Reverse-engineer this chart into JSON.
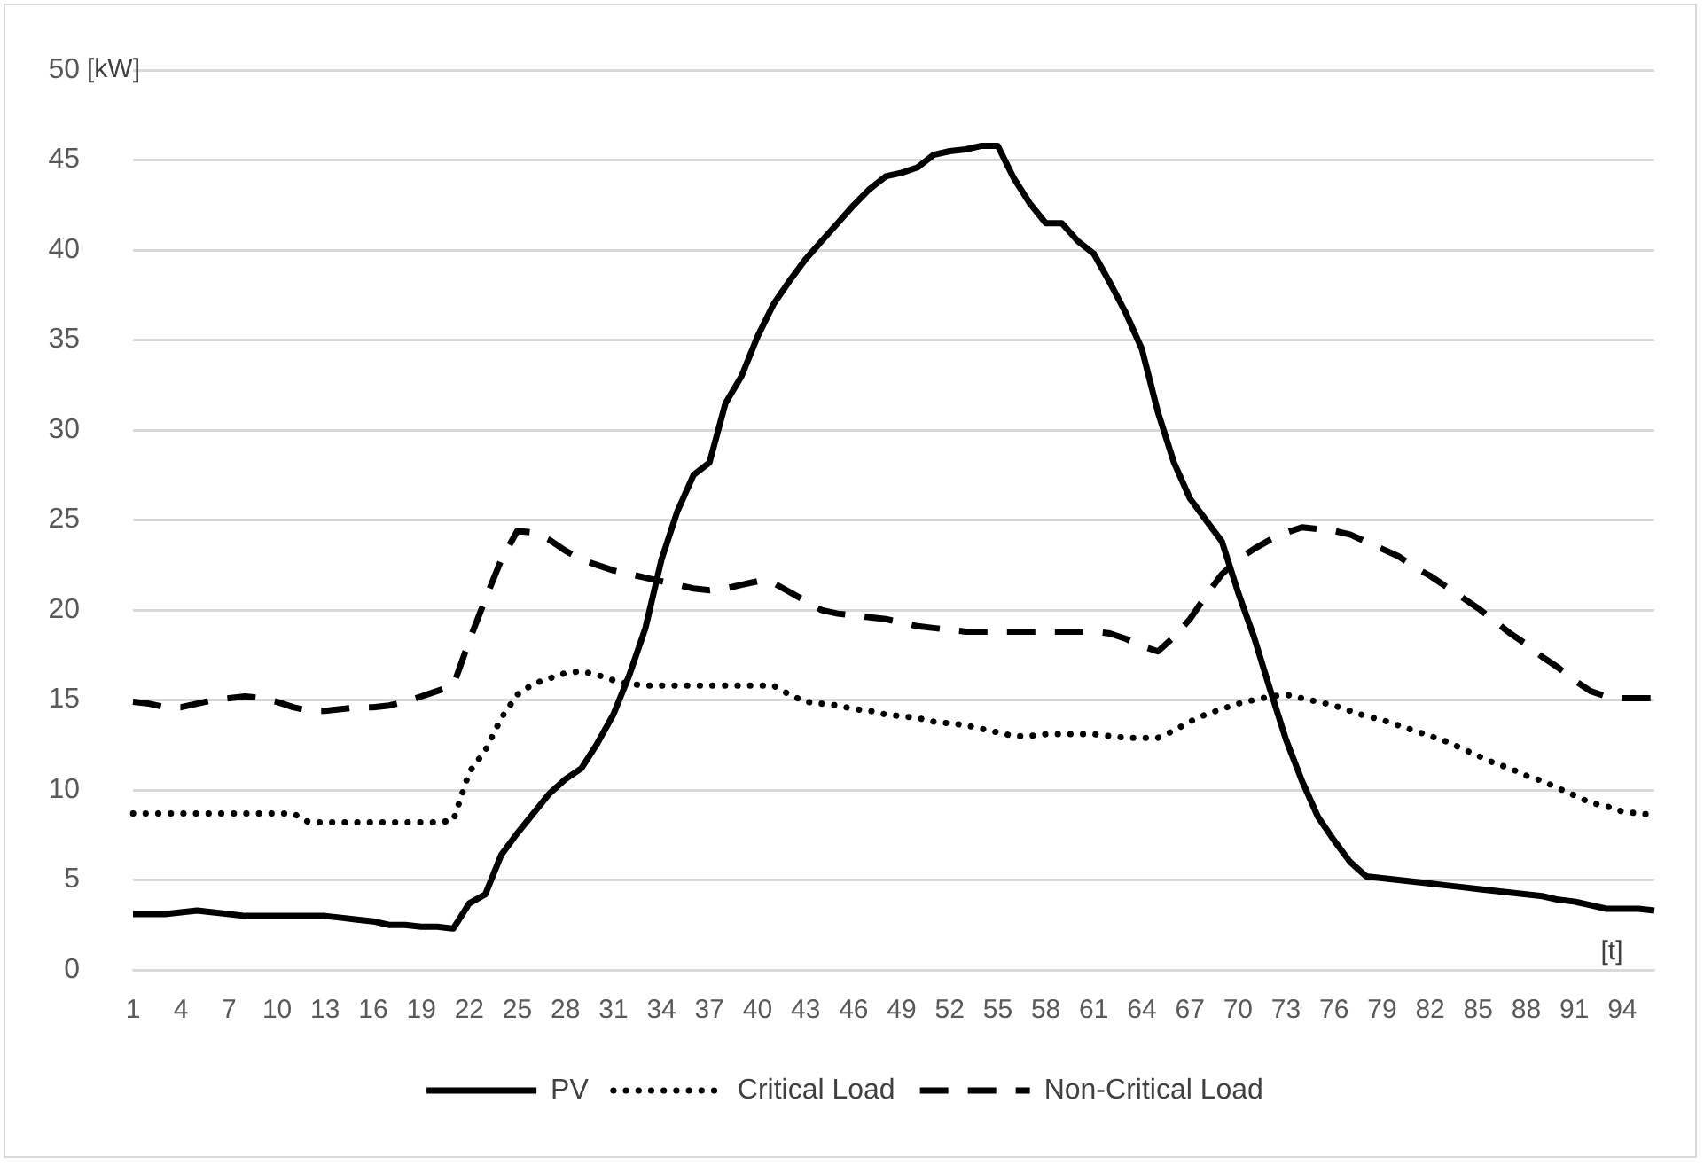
{
  "chart_data": {
    "type": "line",
    "xlabel": "[t]",
    "ylabel": "[kW]",
    "categories": [
      "1",
      null,
      null,
      "4",
      null,
      null,
      "7",
      null,
      null,
      "10",
      null,
      null,
      "13",
      null,
      null,
      "16",
      null,
      null,
      "19",
      null,
      null,
      "22",
      null,
      null,
      "25",
      null,
      null,
      "28",
      null,
      null,
      "31",
      null,
      null,
      "34",
      null,
      null,
      "37",
      null,
      null,
      "40",
      null,
      null,
      "43",
      null,
      null,
      "46",
      null,
      null,
      "49",
      null,
      null,
      "52",
      null,
      null,
      "55",
      null,
      null,
      "58",
      null,
      null,
      "61",
      null,
      null,
      "64",
      null,
      null,
      "67",
      null,
      null,
      "70",
      null,
      null,
      "73",
      null,
      null,
      "76",
      null,
      null,
      "79",
      null,
      null,
      "82",
      null,
      null,
      "85",
      null,
      null,
      "88",
      null,
      null,
      "91",
      null,
      null,
      "94",
      null,
      null
    ],
    "series": [
      {
        "name": "PV",
        "color": "#000000",
        "line_style": "solid",
        "values": [
          3.1,
          3.1,
          3.1,
          3.2,
          3.3,
          3.2,
          3.1,
          3.0,
          3.0,
          3.0,
          3.0,
          3.0,
          3.0,
          2.9,
          2.8,
          2.7,
          2.5,
          2.5,
          2.4,
          2.4,
          2.3,
          3.7,
          4.2,
          6.4,
          7.6,
          8.7,
          9.8,
          10.6,
          11.2,
          12.6,
          14.2,
          16.4,
          19.0,
          22.8,
          25.5,
          27.5,
          28.2,
          31.5,
          33.0,
          35.2,
          37.0,
          38.3,
          39.5,
          40.5,
          41.5,
          42.5,
          43.4,
          44.1,
          44.3,
          44.6,
          45.3,
          45.5,
          45.6,
          45.8,
          45.8,
          44.0,
          42.6,
          41.5,
          41.5,
          40.5,
          39.8,
          38.2,
          36.5,
          34.5,
          31.0,
          28.2,
          26.2,
          25.0,
          23.8,
          21.0,
          18.5,
          15.6,
          12.8,
          10.5,
          8.5,
          7.2,
          6.0,
          5.2,
          5.1,
          5.0,
          4.9,
          4.8,
          4.7,
          4.6,
          4.5,
          4.4,
          4.3,
          4.2,
          4.1,
          3.9,
          3.8,
          3.6,
          3.4,
          3.4,
          3.4,
          3.3
        ]
      },
      {
        "name": "Critical Load",
        "color": "#000000",
        "line_style": "dotted",
        "values": [
          8.7,
          8.7,
          8.7,
          8.7,
          8.7,
          8.7,
          8.7,
          8.7,
          8.7,
          8.7,
          8.7,
          8.2,
          8.2,
          8.2,
          8.2,
          8.2,
          8.2,
          8.2,
          8.2,
          8.2,
          8.3,
          11.0,
          12.2,
          14.0,
          15.3,
          15.9,
          16.2,
          16.5,
          16.6,
          16.4,
          16.1,
          15.9,
          15.8,
          15.8,
          15.8,
          15.8,
          15.8,
          15.8,
          15.8,
          15.8,
          15.8,
          15.3,
          14.9,
          14.8,
          14.7,
          14.5,
          14.4,
          14.2,
          14.1,
          14.0,
          13.8,
          13.7,
          13.6,
          13.4,
          13.2,
          13.0,
          13.0,
          13.1,
          13.1,
          13.1,
          13.1,
          13.0,
          12.9,
          12.9,
          12.9,
          13.3,
          13.8,
          14.2,
          14.5,
          14.8,
          15.0,
          15.2,
          15.3,
          15.1,
          14.9,
          14.7,
          14.4,
          14.1,
          13.9,
          13.6,
          13.3,
          13.0,
          12.7,
          12.3,
          11.9,
          11.5,
          11.2,
          10.8,
          10.5,
          10.1,
          9.7,
          9.3,
          9.1,
          8.8,
          8.7,
          8.6
        ]
      },
      {
        "name": "Non-Critical Load",
        "color": "#000000",
        "line_style": "dashed",
        "values": [
          14.9,
          14.8,
          14.6,
          14.6,
          14.8,
          15.0,
          15.1,
          15.2,
          15.1,
          14.9,
          14.6,
          14.4,
          14.4,
          14.5,
          14.6,
          14.6,
          14.7,
          14.9,
          15.2,
          15.5,
          15.8,
          18.3,
          20.6,
          22.8,
          24.4,
          24.3,
          23.9,
          23.3,
          22.8,
          22.5,
          22.2,
          22.0,
          21.8,
          21.6,
          21.4,
          21.2,
          21.1,
          21.2,
          21.4,
          21.6,
          21.5,
          21.0,
          20.5,
          20.0,
          19.8,
          19.7,
          19.6,
          19.5,
          19.3,
          19.1,
          19.0,
          18.9,
          18.8,
          18.8,
          18.8,
          18.8,
          18.8,
          18.8,
          18.8,
          18.8,
          18.8,
          18.7,
          18.4,
          18.0,
          17.7,
          18.5,
          19.5,
          20.8,
          22.0,
          22.8,
          23.4,
          23.9,
          24.3,
          24.6,
          24.5,
          24.4,
          24.2,
          23.8,
          23.4,
          23.0,
          22.4,
          21.9,
          21.3,
          20.7,
          20.1,
          19.4,
          18.7,
          18.1,
          17.4,
          16.8,
          16.1,
          15.5,
          15.2,
          15.1,
          15.1,
          15.1
        ]
      }
    ],
    "ylim": [
      0,
      50
    ],
    "yticks": [
      0,
      5,
      10,
      15,
      20,
      25,
      30,
      35,
      40,
      45,
      50
    ],
    "grid": "y",
    "legend": "bottom",
    "marker": "none"
  }
}
